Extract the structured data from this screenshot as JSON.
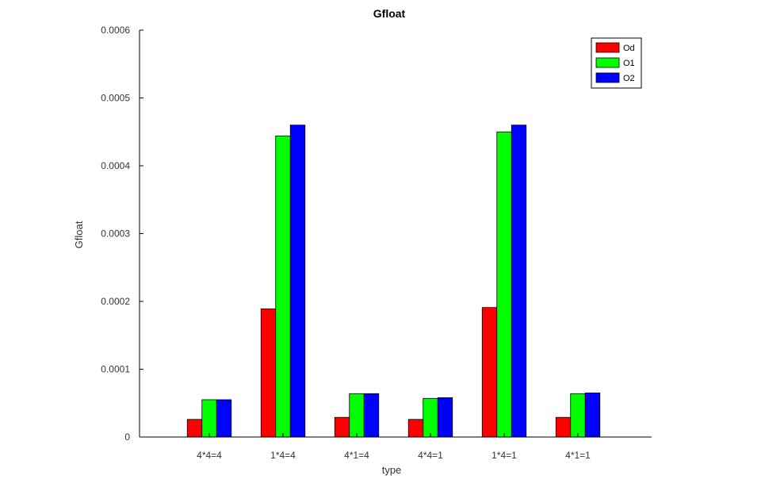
{
  "chart_data": {
    "type": "bar",
    "title": "Gfloat",
    "xlabel": "type",
    "ylabel": "Gfloat",
    "categories": [
      "4*4=4",
      "1*4=4",
      "4*1=4",
      "4*4=1",
      "1*4=1",
      "4*1=1"
    ],
    "series": [
      {
        "name": "Od",
        "color": "#ff0000",
        "values": [
          2.6e-05,
          0.000189,
          2.9e-05,
          2.6e-05,
          0.000191,
          2.9e-05
        ]
      },
      {
        "name": "O1",
        "color": "#00ff00",
        "values": [
          5.5e-05,
          0.000444,
          6.4e-05,
          5.7e-05,
          0.00045,
          6.4e-05
        ]
      },
      {
        "name": "O2",
        "color": "#0000ff",
        "values": [
          5.5e-05,
          0.00046,
          6.4e-05,
          5.8e-05,
          0.00046,
          6.5e-05
        ]
      }
    ],
    "ylim": [
      0,
      0.0006
    ],
    "yticks": [
      "0",
      "0.0001",
      "0.0002",
      "0.0003",
      "0.0004",
      "0.0005",
      "0.0006"
    ],
    "grid": false,
    "legend_position": "top-right"
  }
}
